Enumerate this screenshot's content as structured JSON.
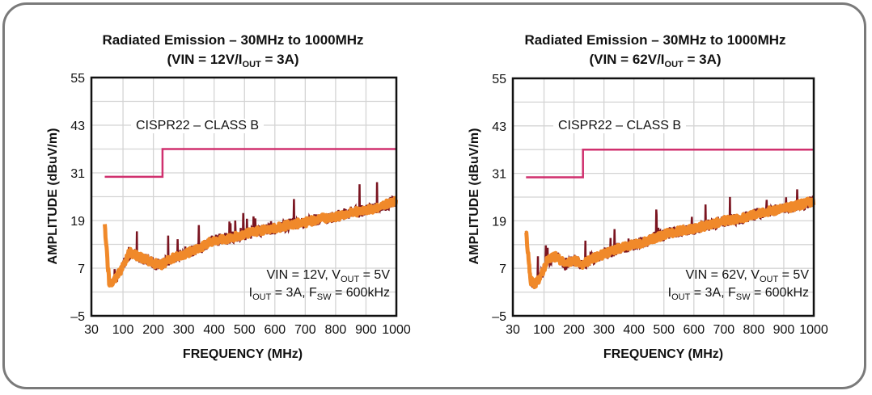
{
  "chart_data": [
    {
      "type": "line",
      "title": "Radiated Emission – 30MHz to 1000MHz",
      "subtitle_parts": [
        "(VIN = 12V/I",
        "OUT",
        " = 3A)"
      ],
      "xlabel": "FREQUENCY (MHz)",
      "ylabel": "AMPLITUDE (dBuV/m)",
      "xlim": [
        30,
        1000
      ],
      "ylim": [
        -5,
        55
      ],
      "x_ticks": [
        "30",
        "100",
        "200",
        "300",
        "400",
        "500",
        "600",
        "700",
        "800",
        "900",
        "1000"
      ],
      "y_ticks": [
        "55",
        "43",
        "31",
        "19",
        "7",
        "–5"
      ],
      "grid": true,
      "limit_label": "CISPR22 – CLASS B",
      "limit_line": {
        "x": [
          40,
          230,
          230,
          1000
        ],
        "y": [
          30,
          30,
          37,
          37
        ],
        "color": "#d0306e"
      },
      "emission": {
        "x": [
          40,
          55,
          70,
          90,
          120,
          150,
          180,
          210,
          230,
          260,
          300,
          350,
          400,
          450,
          500,
          550,
          600,
          650,
          700,
          750,
          800,
          850,
          900,
          950,
          1000
        ],
        "y": [
          18,
          3,
          4,
          6,
          11,
          10,
          9,
          8,
          8,
          9.5,
          10.5,
          12,
          14,
          14.5,
          15.5,
          16.5,
          17,
          18,
          18.5,
          19.5,
          20,
          21,
          21.5,
          22.5,
          24
        ],
        "colors": [
          "#f0892a",
          "#7a1420"
        ]
      },
      "annotation": {
        "line1": "VIN = 12V, V",
        "line1_sub": "OUT",
        "line1_end": " = 5V",
        "line2": "I",
        "line2_sub": "OUT",
        "line2_mid": " = 3A, F",
        "line2_sub2": "SW",
        "line2_end": " = 600kHz"
      }
    },
    {
      "type": "line",
      "title": "Radiated Emission – 30MHz to 1000MHz",
      "subtitle_parts": [
        "(VIN = 62V/I",
        "OUT",
        " = 3A)"
      ],
      "xlabel": "FREQUENCY (MHz)",
      "ylabel": "AMPLITUDE (dBuV/m)",
      "xlim": [
        30,
        1000
      ],
      "ylim": [
        -5,
        55
      ],
      "x_ticks": [
        "30",
        "100",
        "200",
        "300",
        "400",
        "500",
        "600",
        "700",
        "800",
        "900",
        "1000"
      ],
      "y_ticks": [
        "55",
        "43",
        "31",
        "19",
        "7",
        "–5"
      ],
      "grid": true,
      "limit_label": "CISPR22 – CLASS B",
      "limit_line": {
        "x": [
          40,
          230,
          230,
          1000
        ],
        "y": [
          30,
          30,
          37,
          37
        ],
        "color": "#d0306e"
      },
      "emission": {
        "x": [
          40,
          55,
          70,
          90,
          110,
          140,
          170,
          200,
          230,
          260,
          300,
          350,
          400,
          450,
          500,
          550,
          600,
          650,
          700,
          750,
          800,
          850,
          900,
          950,
          1000
        ],
        "y": [
          16,
          4,
          3,
          5,
          9,
          10,
          8,
          9,
          8,
          9.5,
          10.5,
          12,
          13,
          14,
          15.5,
          16.5,
          17,
          18,
          19,
          19.5,
          20.5,
          21.5,
          22,
          23,
          24
        ],
        "colors": [
          "#f0892a",
          "#7a1420"
        ]
      },
      "annotation": {
        "line1": "VIN = 62V, V",
        "line1_sub": "OUT",
        "line1_end": " = 5V",
        "line2": "I",
        "line2_sub": "OUT",
        "line2_mid": " = 3A, F",
        "line2_sub2": "SW",
        "line2_end": " = 600kHz"
      }
    }
  ]
}
